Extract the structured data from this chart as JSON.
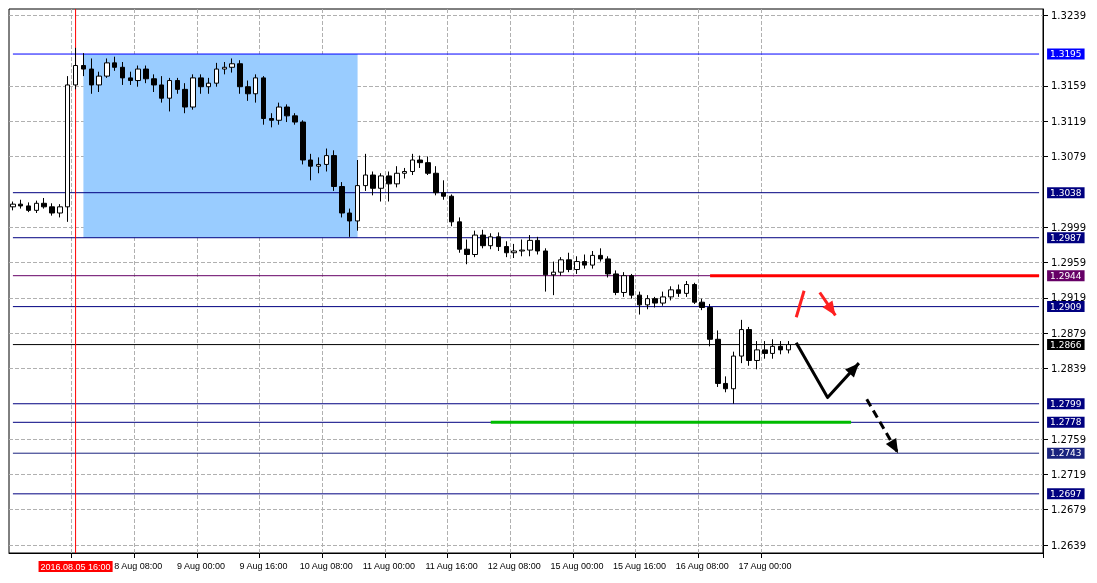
{
  "chart_data": {
    "type": "candlestick",
    "categories": [
      null,
      null,
      null,
      null,
      null,
      null,
      null,
      null,
      "2016.08.05 16:00",
      null,
      null,
      null,
      null,
      null,
      null,
      null,
      "8 Aug 08:00",
      null,
      null,
      null,
      null,
      null,
      null,
      null,
      "9 Aug 00:00",
      null,
      null,
      null,
      null,
      null,
      null,
      null,
      "9 Aug 16:00",
      null,
      null,
      null,
      null,
      null,
      null,
      null,
      "10 Aug 08:00",
      null,
      null,
      null,
      null,
      null,
      null,
      null,
      "11 Aug 00:00",
      null,
      null,
      null,
      null,
      null,
      null,
      null,
      "11 Aug 16:00",
      null,
      null,
      null,
      null,
      null,
      null,
      null,
      "12 Aug 08:00",
      null,
      null,
      null,
      null,
      null,
      null,
      null,
      "15 Aug 00:00",
      null,
      null,
      null,
      null,
      null,
      null,
      null,
      "15 Aug 16:00",
      null,
      null,
      null,
      null,
      null,
      null,
      null,
      "16 Aug 08:00",
      null,
      null,
      null,
      null,
      null,
      null,
      null,
      "17 Aug 00:00",
      null,
      null,
      null,
      null,
      null,
      null,
      null,
      null,
      null,
      null,
      null,
      null,
      null,
      null,
      null,
      null,
      null,
      null,
      null,
      null,
      null,
      null,
      null,
      null,
      null,
      null,
      null,
      null,
      null,
      null,
      null,
      null,
      null,
      null,
      null
    ],
    "ohlc": [
      [
        1.3022,
        1.3028,
        1.3018,
        1.3025
      ],
      [
        1.3025,
        1.303,
        1.302,
        1.3023
      ],
      [
        1.3023,
        1.3027,
        1.3016,
        1.3018
      ],
      [
        1.3018,
        1.3029,
        1.3015,
        1.3026
      ],
      [
        1.3026,
        1.3032,
        1.302,
        1.3022
      ],
      [
        1.3022,
        1.3026,
        1.3012,
        1.3015
      ],
      [
        1.3015,
        1.3025,
        1.301,
        1.3022
      ],
      [
        1.3022,
        1.317,
        1.3005,
        1.316
      ],
      [
        1.316,
        1.3202,
        1.3155,
        1.3182
      ],
      [
        1.3182,
        1.3196,
        1.317,
        1.3178
      ],
      [
        1.3178,
        1.319,
        1.315,
        1.316
      ],
      [
        1.316,
        1.3175,
        1.3152,
        1.317
      ],
      [
        1.317,
        1.319,
        1.3168,
        1.3185
      ],
      [
        1.3185,
        1.3192,
        1.3176,
        1.318
      ],
      [
        1.318,
        1.3186,
        1.316,
        1.3168
      ],
      [
        1.3168,
        1.3175,
        1.316,
        1.3165
      ],
      [
        1.3165,
        1.3182,
        1.3158,
        1.3178
      ],
      [
        1.3178,
        1.3182,
        1.3162,
        1.3167
      ],
      [
        1.3167,
        1.3172,
        1.3152,
        1.316
      ],
      [
        1.316,
        1.317,
        1.314,
        1.3145
      ],
      [
        1.3145,
        1.3168,
        1.313,
        1.3165
      ],
      [
        1.3165,
        1.3168,
        1.315,
        1.3155
      ],
      [
        1.3155,
        1.3162,
        1.3128,
        1.3135
      ],
      [
        1.3135,
        1.3172,
        1.3132,
        1.3168
      ],
      [
        1.3168,
        1.3172,
        1.315,
        1.3158
      ],
      [
        1.3158,
        1.3168,
        1.315,
        1.3162
      ],
      [
        1.3162,
        1.3185,
        1.3158,
        1.3178
      ],
      [
        1.3178,
        1.3186,
        1.3172,
        1.318
      ],
      [
        1.318,
        1.319,
        1.3174,
        1.3184
      ],
      [
        1.3184,
        1.3188,
        1.315,
        1.3158
      ],
      [
        1.3158,
        1.3165,
        1.3142,
        1.315
      ],
      [
        1.315,
        1.3172,
        1.314,
        1.3168
      ],
      [
        1.3168,
        1.317,
        1.3115,
        1.3122
      ],
      [
        1.3122,
        1.3128,
        1.3112,
        1.312
      ],
      [
        1.312,
        1.314,
        1.3115,
        1.3135
      ],
      [
        1.3135,
        1.3138,
        1.3118,
        1.3125
      ],
      [
        1.3125,
        1.3128,
        1.3115,
        1.3118
      ],
      [
        1.3118,
        1.312,
        1.307,
        1.3075
      ],
      [
        1.3075,
        1.3082,
        1.3052,
        1.3068
      ],
      [
        1.3068,
        1.3078,
        1.306,
        1.307
      ],
      [
        1.307,
        1.3088,
        1.3062,
        1.308
      ],
      [
        1.308,
        1.3086,
        1.304,
        1.3045
      ],
      [
        1.3045,
        1.305,
        1.301,
        1.3015
      ],
      [
        1.3015,
        1.302,
        1.2988,
        1.3006
      ],
      [
        1.3006,
        1.3075,
        1.2995,
        1.3046
      ],
      [
        1.3046,
        1.3082,
        1.304,
        1.3058
      ],
      [
        1.3058,
        1.3062,
        1.3035,
        1.3043
      ],
      [
        1.3043,
        1.306,
        1.3028,
        1.3057
      ],
      [
        1.3057,
        1.3062,
        1.3028,
        1.3048
      ],
      [
        1.3048,
        1.3068,
        1.3044,
        1.306
      ],
      [
        1.306,
        1.3066,
        1.3054,
        1.3062
      ],
      [
        1.3062,
        1.3082,
        1.3058,
        1.3075
      ],
      [
        1.3075,
        1.308,
        1.3066,
        1.3072
      ],
      [
        1.3072,
        1.3079,
        1.3058,
        1.306
      ],
      [
        1.306,
        1.3068,
        1.3035,
        1.3038
      ],
      [
        1.3038,
        1.3052,
        1.303,
        1.3034
      ],
      [
        1.3034,
        1.3036,
        1.3,
        1.3005
      ],
      [
        1.3005,
        1.301,
        1.297,
        1.2974
      ],
      [
        1.2974,
        1.2985,
        1.2957,
        1.2968
      ],
      [
        1.2968,
        1.2995,
        1.2965,
        1.299
      ],
      [
        1.299,
        1.2996,
        1.2975,
        1.2978
      ],
      [
        1.2978,
        1.2992,
        1.2974,
        1.2988
      ],
      [
        1.2988,
        1.2993,
        1.2972,
        1.2977
      ],
      [
        1.2977,
        1.2983,
        1.2965,
        1.297
      ],
      [
        1.297,
        1.298,
        1.2964,
        1.2972
      ],
      [
        1.2972,
        1.2985,
        1.2966,
        1.2973
      ],
      [
        1.2973,
        1.299,
        1.2966,
        1.2984
      ],
      [
        1.2984,
        1.2988,
        1.2968,
        1.2972
      ],
      [
        1.2972,
        1.2975,
        1.2926,
        1.2945
      ],
      [
        1.2945,
        1.296,
        1.2922,
        1.2948
      ],
      [
        1.2948,
        1.2965,
        1.2944,
        1.2962
      ],
      [
        1.2962,
        1.297,
        1.2948,
        1.2951
      ],
      [
        1.2951,
        1.2966,
        1.2946,
        1.296
      ],
      [
        1.296,
        1.2968,
        1.2952,
        1.2956
      ],
      [
        1.2956,
        1.2972,
        1.2952,
        1.2967
      ],
      [
        1.2967,
        1.2975,
        1.296,
        1.2963
      ],
      [
        1.2963,
        1.2966,
        1.2942,
        1.2946
      ],
      [
        1.2946,
        1.295,
        1.2922,
        1.2925
      ],
      [
        1.2925,
        1.2948,
        1.292,
        1.2944
      ],
      [
        1.2944,
        1.2946,
        1.2918,
        1.2922
      ],
      [
        1.2922,
        1.2926,
        1.29,
        1.2911
      ],
      [
        1.2911,
        1.2922,
        1.2906,
        1.2918
      ],
      [
        1.2918,
        1.292,
        1.2908,
        1.2913
      ],
      [
        1.2913,
        1.2926,
        1.291,
        1.292
      ],
      [
        1.292,
        1.2932,
        1.2916,
        1.2928
      ],
      [
        1.2928,
        1.2934,
        1.292,
        1.2924
      ],
      [
        1.2924,
        1.2938,
        1.292,
        1.2934
      ],
      [
        1.2934,
        1.2936,
        1.2912,
        1.2914
      ],
      [
        1.2914,
        1.2918,
        1.2905,
        1.2908
      ],
      [
        1.2908,
        1.2912,
        1.2864,
        1.2872
      ],
      [
        1.2872,
        1.2882,
        1.2818,
        1.2822
      ],
      [
        1.2822,
        1.283,
        1.2812,
        1.2816
      ],
      [
        1.2816,
        1.2858,
        1.2799,
        1.2853
      ],
      [
        1.2853,
        1.2894,
        1.2845,
        1.2883
      ],
      [
        1.2883,
        1.2886,
        1.2842,
        1.2848
      ],
      [
        1.2848,
        1.287,
        1.2838,
        1.286
      ],
      [
        1.286,
        1.287,
        1.285,
        1.2856
      ],
      [
        1.2856,
        1.2872,
        1.285,
        1.2864
      ],
      [
        1.2864,
        1.287,
        1.2855,
        1.286
      ],
      [
        1.286,
        1.287,
        1.2856,
        1.2866
      ],
      null,
      null,
      null,
      null,
      null,
      null,
      null,
      null,
      null,
      null,
      null,
      null,
      null,
      null,
      null,
      null,
      null,
      null,
      null,
      null,
      null,
      null,
      null,
      null,
      null,
      null,
      null,
      null,
      null,
      null,
      null,
      null
    ],
    "series": [
      {
        "type": "line",
        "color": "#ff0000",
        "values": [
          null,
          null,
          null,
          null,
          null,
          null,
          null,
          null,
          null,
          null,
          null,
          null,
          null,
          null,
          null,
          null,
          null,
          null,
          null,
          null,
          null,
          null,
          null,
          null,
          null,
          null,
          null,
          null,
          null,
          null,
          null,
          null,
          null,
          null,
          null,
          null,
          null,
          null,
          null,
          null,
          null,
          null,
          null,
          null,
          null,
          null,
          null,
          null,
          null,
          null,
          null,
          null,
          null,
          null,
          null,
          null,
          null,
          null,
          null,
          null,
          null,
          null,
          null,
          null,
          null,
          null,
          null,
          null,
          null,
          null,
          null,
          null,
          null,
          null,
          null,
          null,
          null,
          null,
          null,
          null,
          null,
          null,
          null,
          null,
          null,
          null,
          null,
          null,
          null,
          1.2944,
          1.2944,
          1.2944,
          1.2944,
          1.2944,
          1.2944,
          1.2944,
          1.2944,
          1.2944,
          1.2944,
          1.2944,
          1.2944,
          1.2944,
          1.2944,
          1.2944,
          1.2944,
          1.2944,
          1.2944,
          1.2944,
          1.2944,
          1.2944,
          1.2944,
          1.2944,
          1.2944,
          1.2944,
          1.2944,
          1.2944,
          1.2944,
          1.2944,
          1.2944,
          1.2944,
          1.2944,
          1.2944,
          1.2944,
          1.2944,
          1.2944,
          1.2944,
          1.2944,
          1.2944,
          1.2944,
          1.2944,
          1.2944,
          1.2944
        ]
      },
      {
        "type": "line",
        "color": "#00bb00",
        "values": [
          null,
          null,
          null,
          null,
          null,
          null,
          null,
          null,
          null,
          null,
          null,
          null,
          null,
          null,
          null,
          null,
          null,
          null,
          null,
          null,
          null,
          null,
          null,
          null,
          null,
          null,
          null,
          null,
          null,
          null,
          null,
          null,
          null,
          null,
          null,
          null,
          null,
          null,
          null,
          null,
          null,
          null,
          null,
          null,
          null,
          null,
          null,
          null,
          null,
          null,
          null,
          null,
          null,
          null,
          null,
          null,
          null,
          null,
          null,
          null,
          null,
          1.2778,
          1.2778,
          1.2778,
          1.2778,
          1.2778,
          1.2778,
          1.2778,
          1.2778,
          1.2778,
          1.2778,
          1.2778,
          1.2778,
          1.2778,
          1.2778,
          1.2778,
          1.2778,
          1.2778,
          1.2778,
          1.2778,
          1.2778,
          1.2778,
          1.2778,
          1.2778,
          1.2778,
          1.2778,
          1.2778,
          1.2778,
          1.2778,
          1.2778,
          1.2778,
          1.2778,
          1.2778,
          1.2778,
          1.2778,
          1.2778,
          1.2778,
          1.2778,
          1.2778,
          1.2778,
          1.2778,
          1.2778,
          1.2778,
          1.2778,
          1.2778,
          1.2778,
          1.2778,
          1.2778,
          null,
          null,
          null,
          null,
          null,
          null,
          null,
          null,
          null,
          null,
          null,
          null,
          null,
          null,
          null,
          null,
          null,
          null,
          null,
          null,
          null,
          null,
          null,
          null
        ]
      }
    ],
    "ylim": [
      1.263,
      1.3246
    ],
    "yticks": [
      1.2639,
      1.2679,
      1.2719,
      1.2759,
      1.2839,
      1.2879,
      1.2919,
      1.2959,
      1.2999,
      1.3079,
      1.3119,
      1.3159,
      1.3239
    ],
    "ref_lines": [
      {
        "axis": "y",
        "value": 1.3195,
        "label": "1.3195",
        "color": "#0000ff"
      },
      {
        "axis": "y",
        "value": 1.3038,
        "label": "1.3038",
        "color": "#000080"
      },
      {
        "axis": "y",
        "value": 1.2987,
        "label": "1.2987",
        "color": "#000080"
      },
      {
        "axis": "y",
        "value": 1.2944,
        "label": "1.2944",
        "color": "#660066"
      },
      {
        "axis": "y",
        "value": 1.2909,
        "label": "1.2909",
        "color": "#000080"
      },
      {
        "axis": "y",
        "value": 1.2866,
        "label": "1.2866",
        "color": "#000000"
      },
      {
        "axis": "y",
        "value": 1.2799,
        "label": "1.2799",
        "color": "#000080"
      },
      {
        "axis": "y",
        "value": 1.2778,
        "label": "1.2778",
        "color": "#000080"
      },
      {
        "axis": "y",
        "value": 1.2743,
        "label": "1.2743",
        "color": "#1a237e"
      },
      {
        "axis": "y",
        "value": 1.2697,
        "label": "1.2697",
        "color": "#000080"
      },
      {
        "axis": "x",
        "value": "2016.08.05 16:00",
        "label": null,
        "color": "#ff0000"
      }
    ],
    "bands": [
      {
        "axis": "y",
        "from": 1.2987,
        "to": 1.3195,
        "label": null,
        "color": "#99ccff"
      }
    ],
    "grid": true
  }
}
